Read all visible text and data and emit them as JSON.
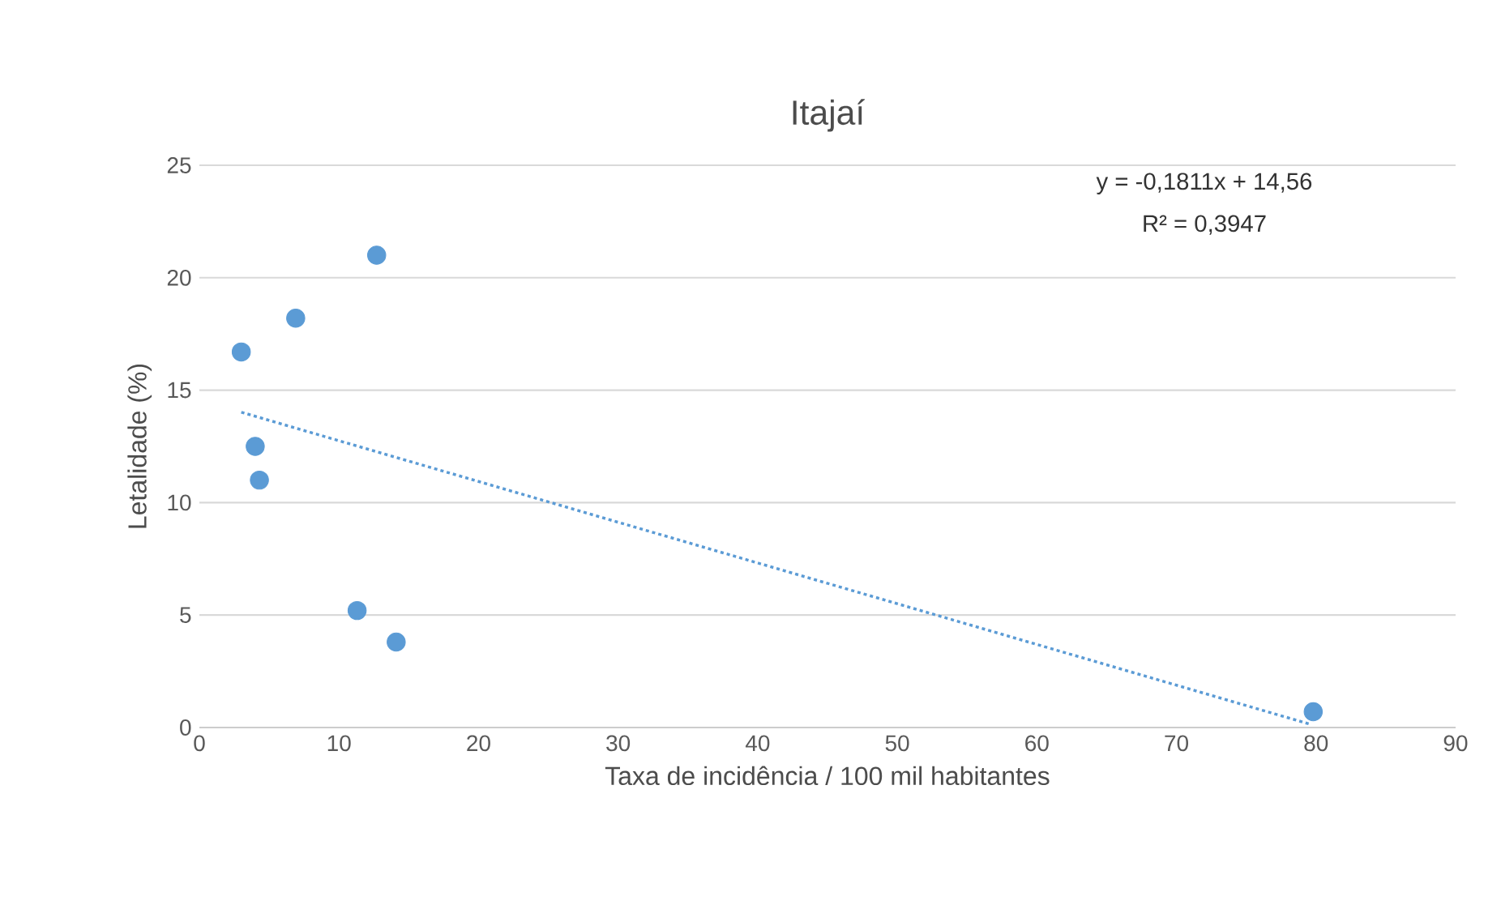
{
  "chart_data": {
    "type": "scatter",
    "title": "Itajaí",
    "xlabel": "Taxa de incidência / 100 mil habitantes",
    "ylabel": "Letalidade (%)",
    "xlim": [
      0,
      90
    ],
    "xticks": [
      0,
      10,
      20,
      30,
      40,
      50,
      60,
      70,
      80,
      90
    ],
    "ylim": [
      0,
      25
    ],
    "yticks": [
      0,
      5,
      10,
      15,
      20,
      25
    ],
    "grid": "y",
    "series": [
      {
        "type": "scatter",
        "marker": "circle",
        "color": "#5b9bd5",
        "x": [
          3.0,
          6.9,
          12.7,
          4.0,
          4.3,
          11.3,
          14.1,
          79.8
        ],
        "values": [
          16.7,
          18.2,
          21.0,
          12.5,
          11.0,
          5.2,
          3.8,
          0.7
        ]
      },
      {
        "type": "line",
        "color": "#5b9bd5",
        "line_style": "dotted",
        "marker": "none",
        "x": [
          3.0,
          79.5
        ],
        "values": [
          14.02,
          0.16
        ]
      }
    ],
    "annotations": [
      "y = -0,1811x + 14,56",
      "R² = 0,3947"
    ]
  }
}
